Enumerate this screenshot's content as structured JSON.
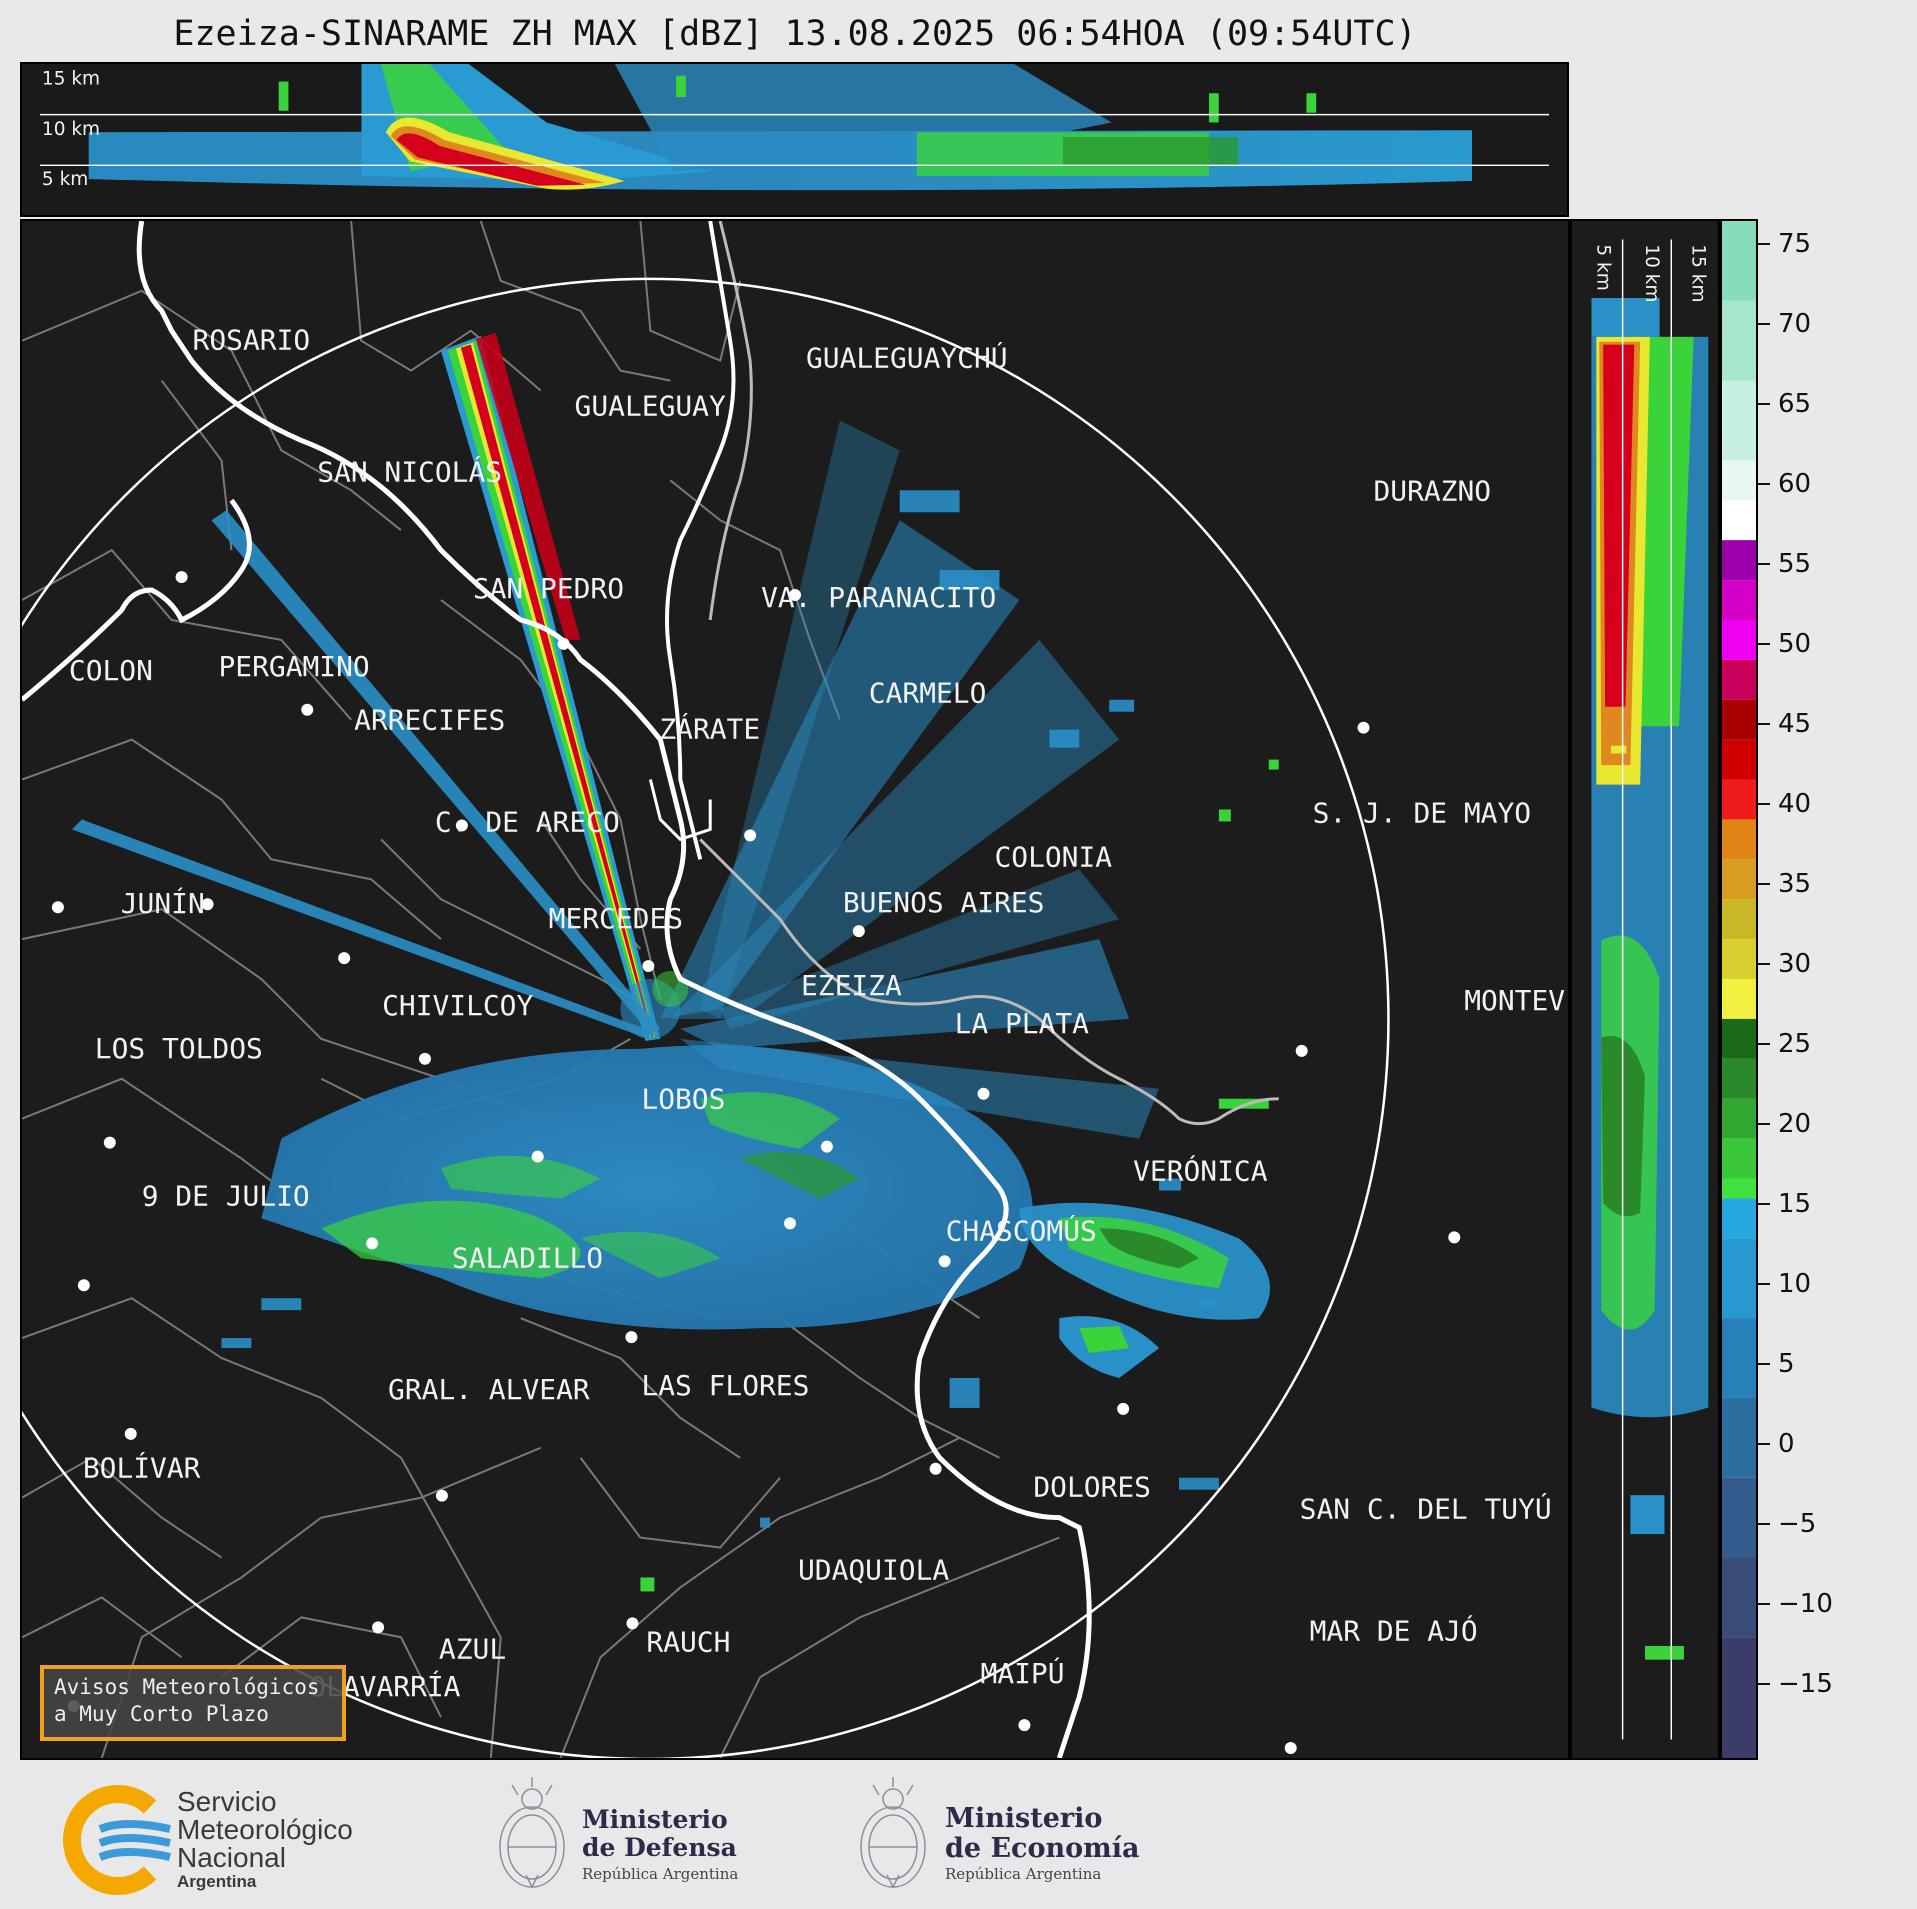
{
  "title": "Ezeiza-SINARAME ZH MAX [dBZ] 13.08.2025 06:54HOA (09:54UTC)",
  "top_section": {
    "levels": [
      "15 km",
      "10 km",
      "5 km"
    ]
  },
  "right_section": {
    "levels": [
      "5 km",
      "10 km",
      "15 km"
    ]
  },
  "colorbar": {
    "ticks": [
      "75",
      "70",
      "65",
      "60",
      "55",
      "50",
      "45",
      "40",
      "35",
      "30",
      "25",
      "20",
      "15",
      "10",
      "5",
      "0",
      "−5",
      "−10",
      "−15"
    ]
  },
  "cities": [
    {
      "name": "ROSARIO"
    },
    {
      "name": "GUALEGUAYCHÚ"
    },
    {
      "name": "GUALEGUAY"
    },
    {
      "name": "SAN NICOLÁS"
    },
    {
      "name": "DURAZNO"
    },
    {
      "name": "SAN PEDRO"
    },
    {
      "name": "VA. PARANACITO"
    },
    {
      "name": "COLON"
    },
    {
      "name": "PERGAMINO"
    },
    {
      "name": "CARMELO"
    },
    {
      "name": "ARRECIFES"
    },
    {
      "name": "ZÁRATE"
    },
    {
      "name": "S. J. DE MAYO"
    },
    {
      "name": "C. DE ARECO"
    },
    {
      "name": "COLONIA"
    },
    {
      "name": "JUNÍN"
    },
    {
      "name": "BUENOS AIRES"
    },
    {
      "name": "MERCEDES"
    },
    {
      "name": "EZEIZA"
    },
    {
      "name": "MONTEV"
    },
    {
      "name": "CHIVILCOY"
    },
    {
      "name": "LA PLATA"
    },
    {
      "name": "LOS TOLDOS"
    },
    {
      "name": "LOBOS"
    },
    {
      "name": "VERÓNICA"
    },
    {
      "name": "9 DE JULIO"
    },
    {
      "name": "CHASCOMÚS"
    },
    {
      "name": "SALADILLO"
    },
    {
      "name": "GRAL. ALVEAR"
    },
    {
      "name": "LAS FLORES"
    },
    {
      "name": "BOLÍVAR"
    },
    {
      "name": "DOLORES"
    },
    {
      "name": "SAN C. DEL TUYÚ"
    },
    {
      "name": "UDAQUIOLA"
    },
    {
      "name": "MAR DE AJÓ"
    },
    {
      "name": "AZUL"
    },
    {
      "name": "RAUCH"
    },
    {
      "name": "OLAVARRÍA"
    },
    {
      "name": "MAIPÚ"
    }
  ],
  "alert_box": {
    "line1": "Avisos Meteorológicos",
    "line2": "a Muy Corto Plazo"
  },
  "footer": {
    "smn": {
      "line1": "Servicio",
      "line2": "Meteorológico",
      "line3": "Nacional",
      "line4": "Argentina"
    },
    "defensa": {
      "line1": "Ministerio",
      "line2": "de Defensa",
      "sub": "República Argentina"
    },
    "economia": {
      "line1": "Ministerio",
      "line2": "de Economía",
      "sub": "República Argentina"
    }
  },
  "colors": {
    "background": "#1c1c1c",
    "range_ring": "#ffffff",
    "borders": "#888888",
    "coast": "#ffffff",
    "accent_alert": "#f0a020",
    "smn_orange": "#f5a800",
    "smn_blue": "#3a9bd8"
  }
}
